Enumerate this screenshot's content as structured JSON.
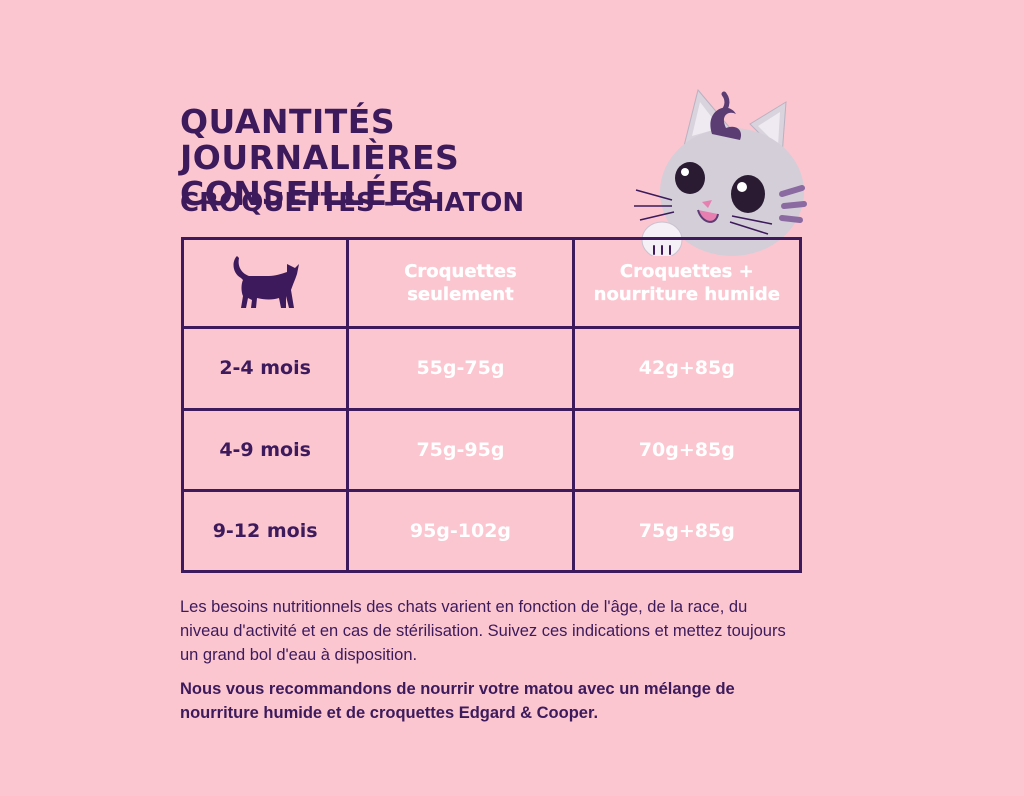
{
  "title": {
    "line1": "QUANTITÉS JOURNALIÈRES",
    "line2": "CONSEILLÉES"
  },
  "subtitle": "CROQUETTES - CHATON",
  "table": {
    "header_icon": "cat-silhouette-icon",
    "columns": [
      "Croquettes seulement",
      "Croquettes + nourriture humide"
    ],
    "rows": [
      {
        "age": "2-4 mois",
        "dry": "55g-75g",
        "mixed": "42g+85g"
      },
      {
        "age": "4-9 mois",
        "dry": "75g-95g",
        "mixed": "70g+85g"
      },
      {
        "age": "9-12 mois",
        "dry": "95g-102g",
        "mixed": "75g+85g"
      }
    ]
  },
  "paragraph1": "Les besoins nutritionnels des chats varient en fonction de l'âge, de la race, du niveau d'activité et en cas de stérilisation. Suivez ces indications et mettez toujours un grand bol d'eau à disposition.",
  "paragraph2": "Nous vous recommandons de nourrir votre matou avec un mélange de nourriture humide et de croquettes Edgard & Cooper.",
  "mascot_icon": "kitten-mascot-icon",
  "colors": {
    "background": "#fbc6d0",
    "primary": "#3c1a5b",
    "cell_text": "#ffffff"
  }
}
